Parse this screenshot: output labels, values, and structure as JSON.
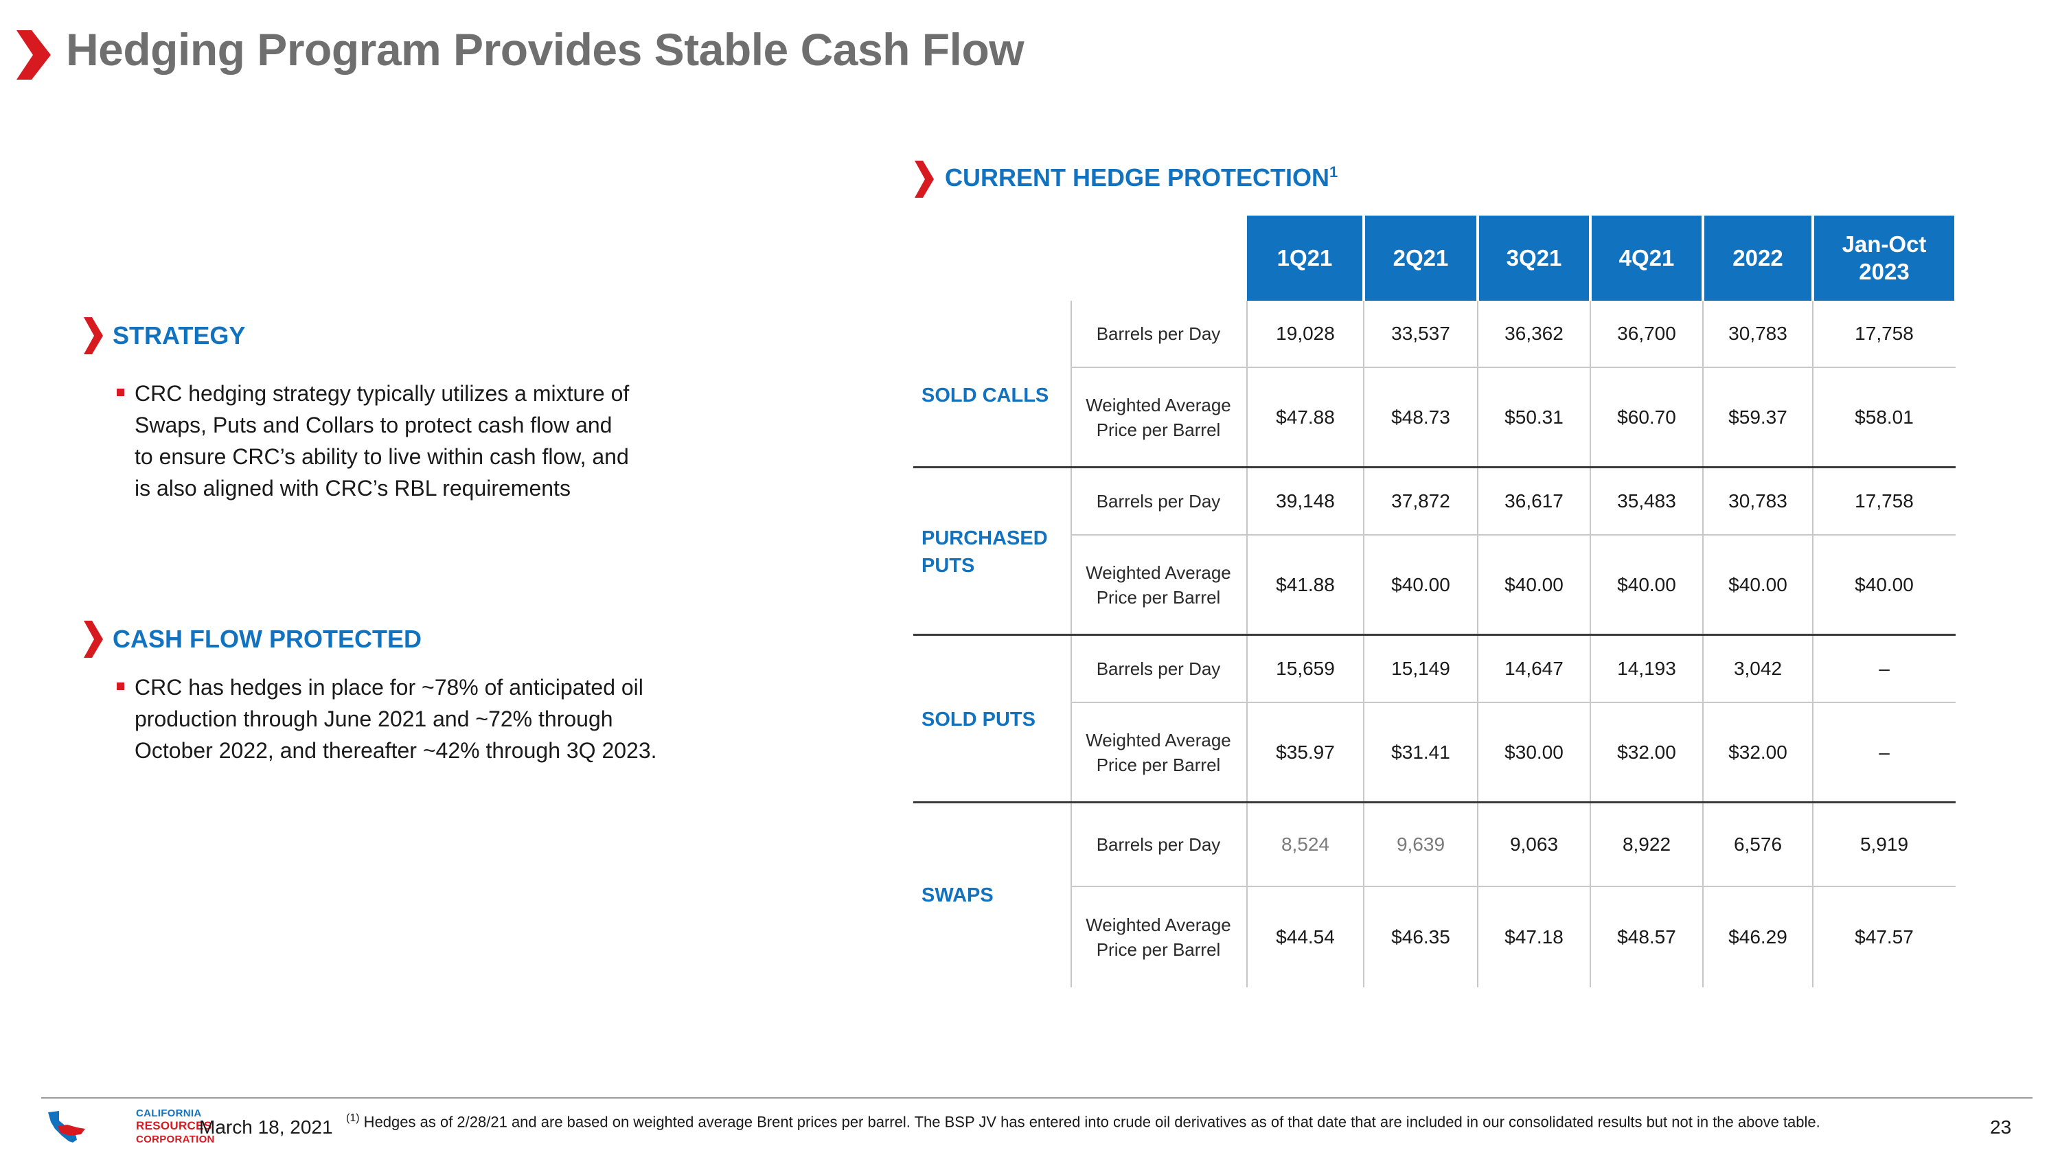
{
  "title": "Hedging Program Provides Stable Cash Flow",
  "colors": {
    "accent_red": "#d71920",
    "brand_blue": "#1172c0",
    "title_gray": "#6f6f6f"
  },
  "strategy": {
    "heading": "STRATEGY",
    "bullet": "CRC hedging strategy typically utilizes a mixture of\nSwaps, Puts and Collars to protect cash flow and\nto ensure CRC’s ability to live within cash flow, and\nis also aligned with CRC’s RBL requirements"
  },
  "cash_flow": {
    "heading": "CASH FLOW PROTECTED",
    "bullet": "CRC has hedges in place for ~78% of anticipated oil\nproduction through June 2021 and ~72% through\nOctober 2022, and thereafter ~42% through 3Q 2023."
  },
  "hedge_table": {
    "heading": "CURRENT HEDGE PROTECTION",
    "heading_sup": "1",
    "columns": [
      "1Q21",
      "2Q21",
      "3Q21",
      "4Q21",
      "2022",
      "Jan-Oct\n2023"
    ],
    "row_labels": {
      "bpd": "Barrels per Day",
      "price": "Weighted Average\nPrice per Barrel"
    },
    "groups": [
      {
        "label": "SOLD CALLS",
        "bpd": [
          "19,028",
          "33,537",
          "36,362",
          "36,700",
          "30,783",
          "17,758"
        ],
        "price": [
          "$47.88",
          "$48.73",
          "$50.31",
          "$60.70",
          "$59.37",
          "$58.01"
        ]
      },
      {
        "label": "PURCHASED\nPUTS",
        "bpd": [
          "39,148",
          "37,872",
          "36,617",
          "35,483",
          "30,783",
          "17,758"
        ],
        "price": [
          "$41.88",
          "$40.00",
          "$40.00",
          "$40.00",
          "$40.00",
          "$40.00"
        ]
      },
      {
        "label": "SOLD PUTS",
        "bpd": [
          "15,659",
          "15,149",
          "14,647",
          "14,193",
          "3,042",
          "–"
        ],
        "price": [
          "$35.97",
          "$31.41",
          "$30.00",
          "$32.00",
          "$32.00",
          "–"
        ]
      },
      {
        "label": "SWAPS",
        "bpd": [
          "8,524",
          "9,639",
          "9,063",
          "8,922",
          "6,576",
          "5,919"
        ],
        "price": [
          "$44.54",
          "$46.35",
          "$47.18",
          "$48.57",
          "$46.29",
          "$47.57"
        ]
      }
    ]
  },
  "footer": {
    "logo_lines": [
      "CALIFORNIA",
      "RESOURCES",
      "CORPORATION"
    ],
    "date": "March 18, 2021",
    "footnote_marker": "(1)",
    "footnote": " Hedges as of 2/28/21 and are based on weighted average Brent prices per barrel.  The BSP JV has entered into crude oil derivatives as of that date that are included in our consolidated results but not in the above table.",
    "page_number": "23"
  }
}
